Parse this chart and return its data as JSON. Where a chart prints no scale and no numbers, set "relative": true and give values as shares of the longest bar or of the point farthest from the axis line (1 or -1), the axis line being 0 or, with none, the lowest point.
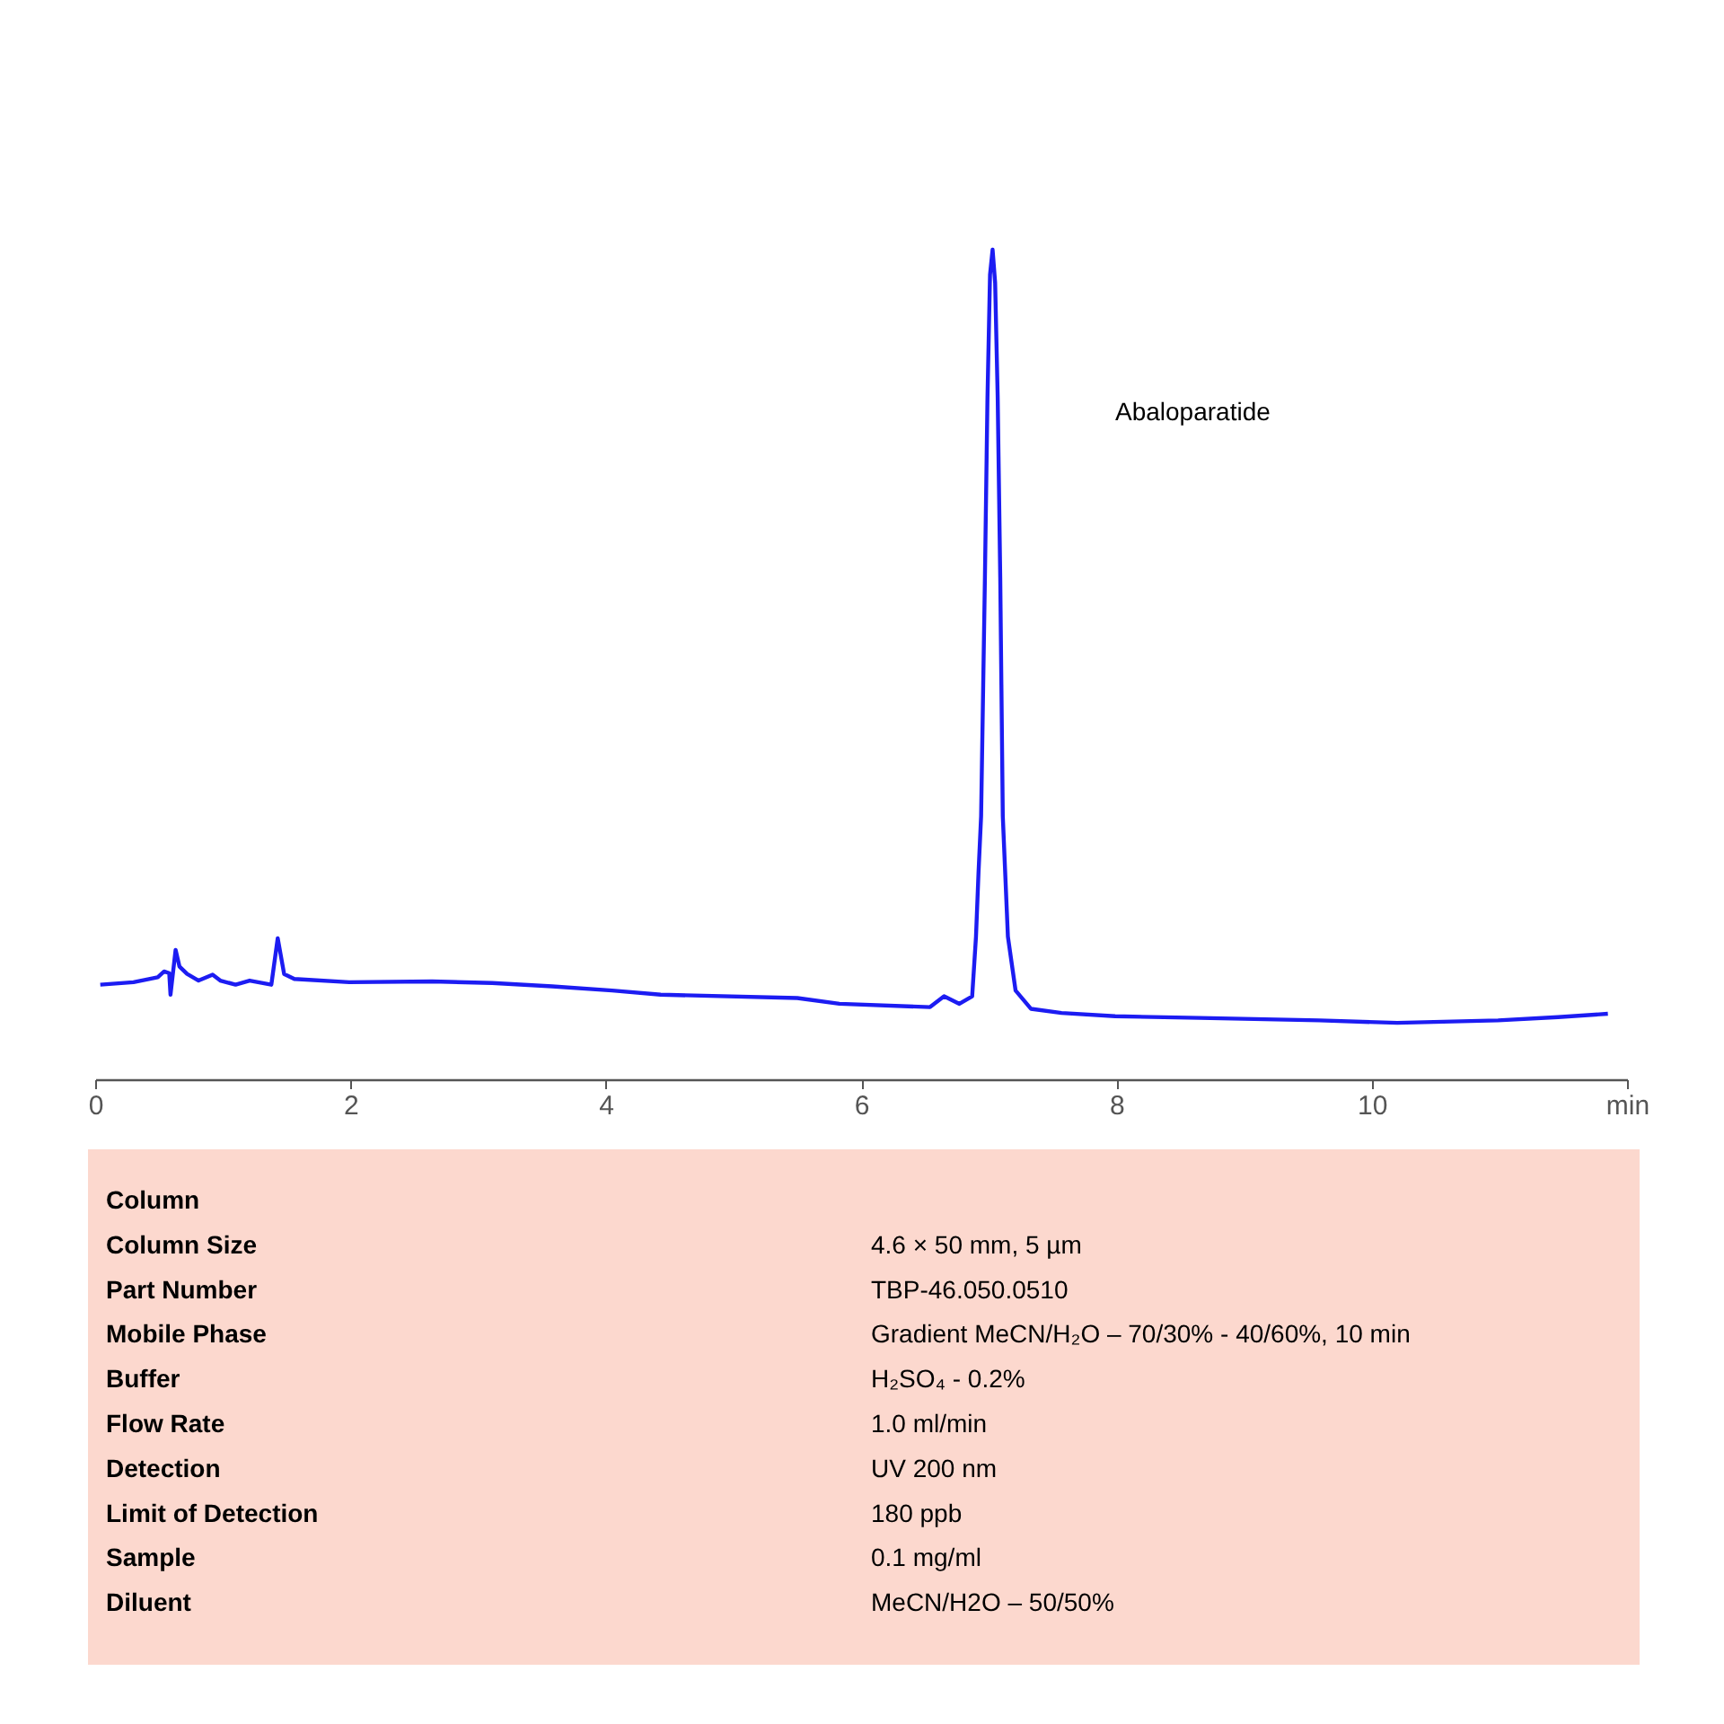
{
  "chart_data": [
    {
      "type": "line",
      "relative": true,
      "color": "#1c1cf2",
      "x": [
        0.04,
        0.3,
        0.49,
        0.54,
        0.58,
        0.59,
        0.63,
        0.66,
        0.72,
        0.81,
        0.92,
        0.98,
        1.1,
        1.21,
        1.38,
        1.43,
        1.48,
        1.56,
        1.99,
        2.64,
        3.11,
        3.58,
        4.05,
        4.43,
        5.5,
        5.83,
        6.54,
        6.65,
        6.77,
        6.87,
        6.9,
        6.92,
        6.94,
        6.97,
        6.99,
        7.01,
        7.03,
        7.05,
        7.07,
        7.09,
        7.11,
        7.15,
        7.21,
        7.33,
        7.57,
        7.99,
        8.65,
        9.59,
        10.2,
        10.99,
        11.46,
        11.85
      ],
      "values": [
        0.114,
        0.117,
        0.123,
        0.13,
        0.128,
        0.102,
        0.156,
        0.136,
        0.127,
        0.119,
        0.126,
        0.119,
        0.114,
        0.119,
        0.114,
        0.17,
        0.127,
        0.121,
        0.117,
        0.118,
        0.116,
        0.112,
        0.107,
        0.102,
        0.098,
        0.091,
        0.087,
        0.1,
        0.091,
        0.1,
        0.172,
        0.25,
        0.317,
        0.605,
        0.822,
        0.97,
        1.0,
        0.96,
        0.822,
        0.605,
        0.317,
        0.172,
        0.107,
        0.085,
        0.08,
        0.076,
        0.074,
        0.071,
        0.068,
        0.071,
        0.075,
        0.079
      ],
      "xlim": [
        0,
        12
      ],
      "xticks": [
        0,
        2,
        4,
        6,
        8,
        10,
        {
          "value": 12,
          "label": "min"
        }
      ],
      "grid": false,
      "annotations": [
        "Abaloparatide"
      ]
    },
    {
      "type": "other",
      "color": "#fcd8ce",
      "categories": [
        "Column",
        "Column Size",
        "Part Number",
        "Mobile Phase",
        "Buffer",
        "Flow Rate",
        "Detection",
        "Limit of Detection",
        "Sample",
        "Diluent"
      ],
      "value_labels": [
        null,
        "4.6 × 50 mm, 5 µm",
        "TBP-46.050.0510",
        "Gradient MeCN/H₂O – 70/30% - 40/60%, 10 min",
        "H₂SO₄ - 0.2%",
        "1.0  ml/min",
        "UV 200 nm",
        "180 ppb",
        "0.1 mg/ml",
        "MeCN/H2O – 50/50%"
      ]
    }
  ]
}
